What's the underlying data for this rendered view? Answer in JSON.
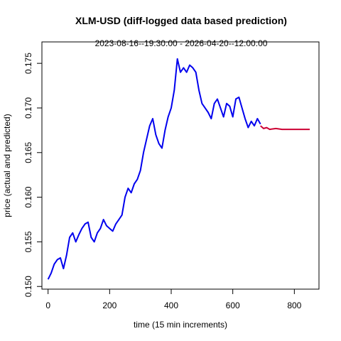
{
  "chart_data": {
    "type": "line",
    "title": "XLM-USD (diff-logged data based prediction)",
    "subtitle": "2023-08-16--19:30:00  -  2026-04-20--12:00:00",
    "xlabel": "time (15 min increments)",
    "ylabel": "price (actual and predicted)",
    "xlim": [
      -20,
      880
    ],
    "ylim": [
      0.1497,
      0.1774
    ],
    "x_ticks": [
      0,
      200,
      400,
      600,
      800
    ],
    "y_ticks": [
      0.15,
      0.155,
      0.16,
      0.165,
      0.17,
      0.175
    ],
    "y_tick_labels": [
      "0.150",
      "0.155",
      "0.160",
      "0.165",
      "0.170",
      "0.175"
    ],
    "grid": false,
    "series": [
      {
        "color": "#0000ee",
        "x": [
          0,
          10,
          20,
          30,
          40,
          50,
          60,
          70,
          80,
          90,
          100,
          110,
          120,
          130,
          140,
          150,
          160,
          170,
          180,
          190,
          200,
          210,
          220,
          230,
          240,
          250,
          260,
          270,
          280,
          290,
          300,
          310,
          320,
          330,
          340,
          350,
          360,
          370,
          380,
          390,
          400,
          410,
          420,
          430,
          440,
          450,
          460,
          470,
          480,
          490,
          500,
          510,
          520,
          530,
          540,
          550,
          560,
          570,
          580,
          590,
          600,
          610,
          620,
          630,
          640,
          650,
          660,
          670,
          680,
          690
        ],
        "y": [
          0.1508,
          0.1515,
          0.1525,
          0.153,
          0.1532,
          0.152,
          0.1535,
          0.1555,
          0.156,
          0.155,
          0.1558,
          0.1565,
          0.157,
          0.1572,
          0.1555,
          0.155,
          0.156,
          0.1565,
          0.1575,
          0.1568,
          0.1565,
          0.1562,
          0.157,
          0.1575,
          0.158,
          0.16,
          0.161,
          0.1605,
          0.1615,
          0.162,
          0.163,
          0.165,
          0.1665,
          0.168,
          0.1688,
          0.167,
          0.166,
          0.1655,
          0.1675,
          0.169,
          0.17,
          0.172,
          0.1755,
          0.174,
          0.1745,
          0.174,
          0.1748,
          0.1745,
          0.174,
          0.172,
          0.1705,
          0.17,
          0.1695,
          0.1688,
          0.1705,
          0.171,
          0.17,
          0.169,
          0.1705,
          0.1702,
          0.169,
          0.171,
          0.1712,
          0.17,
          0.1688,
          0.1678,
          0.1685,
          0.168,
          0.1688,
          0.1682
        ]
      },
      {
        "color": "#cc0033",
        "x": [
          690,
          700,
          710,
          720,
          740,
          760,
          780,
          800,
          820,
          840,
          850
        ],
        "y": [
          0.168,
          0.1677,
          0.1678,
          0.1676,
          0.1677,
          0.1676,
          0.1676,
          0.1676,
          0.1676,
          0.1676,
          0.1676
        ]
      }
    ]
  }
}
